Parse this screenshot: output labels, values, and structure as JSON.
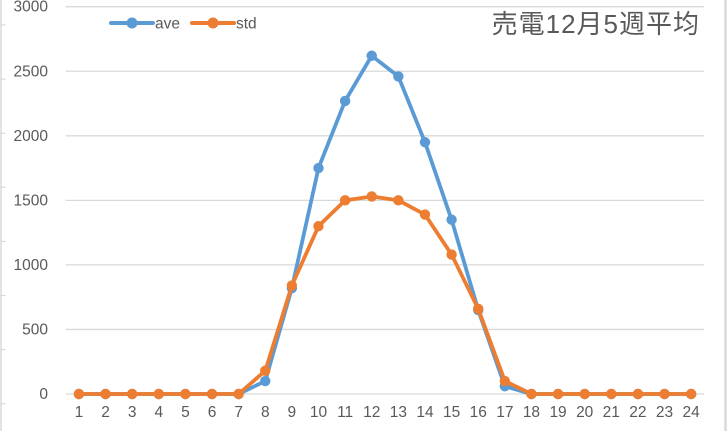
{
  "chart_data": {
    "type": "line",
    "title": "売電12月5週平均",
    "xlabel": "",
    "ylabel": "",
    "x": [
      1,
      2,
      3,
      4,
      5,
      6,
      7,
      8,
      9,
      10,
      11,
      12,
      13,
      14,
      15,
      16,
      17,
      18,
      19,
      20,
      21,
      22,
      23,
      24
    ],
    "series": [
      {
        "name": "ave",
        "color": "#5B9BD5",
        "values": [
          0,
          0,
          0,
          0,
          0,
          0,
          0,
          100,
          820,
          1750,
          2270,
          2620,
          2460,
          1950,
          1350,
          650,
          60,
          0,
          0,
          0,
          0,
          0,
          0,
          0
        ]
      },
      {
        "name": "std",
        "color": "#ED7D31",
        "values": [
          0,
          0,
          0,
          0,
          0,
          0,
          0,
          180,
          840,
          1300,
          1500,
          1530,
          1500,
          1390,
          1080,
          660,
          100,
          0,
          0,
          0,
          0,
          0,
          0,
          0
        ]
      }
    ],
    "ylim": [
      0,
      3000
    ],
    "ytick_step": 500,
    "yticks": [
      0,
      500,
      1000,
      1500,
      2000,
      2500,
      3000
    ],
    "grid": true,
    "legend_position": "top-inside-left",
    "marker": "circle"
  },
  "legend": [
    {
      "label": "ave",
      "color": "#5B9BD5"
    },
    {
      "label": "std",
      "color": "#ED7D31"
    }
  ],
  "colors": {
    "gridline": "#D9D9D9",
    "axis_text": "#595959",
    "title_text": "#595959",
    "frame_border": "#D9D9D9"
  }
}
